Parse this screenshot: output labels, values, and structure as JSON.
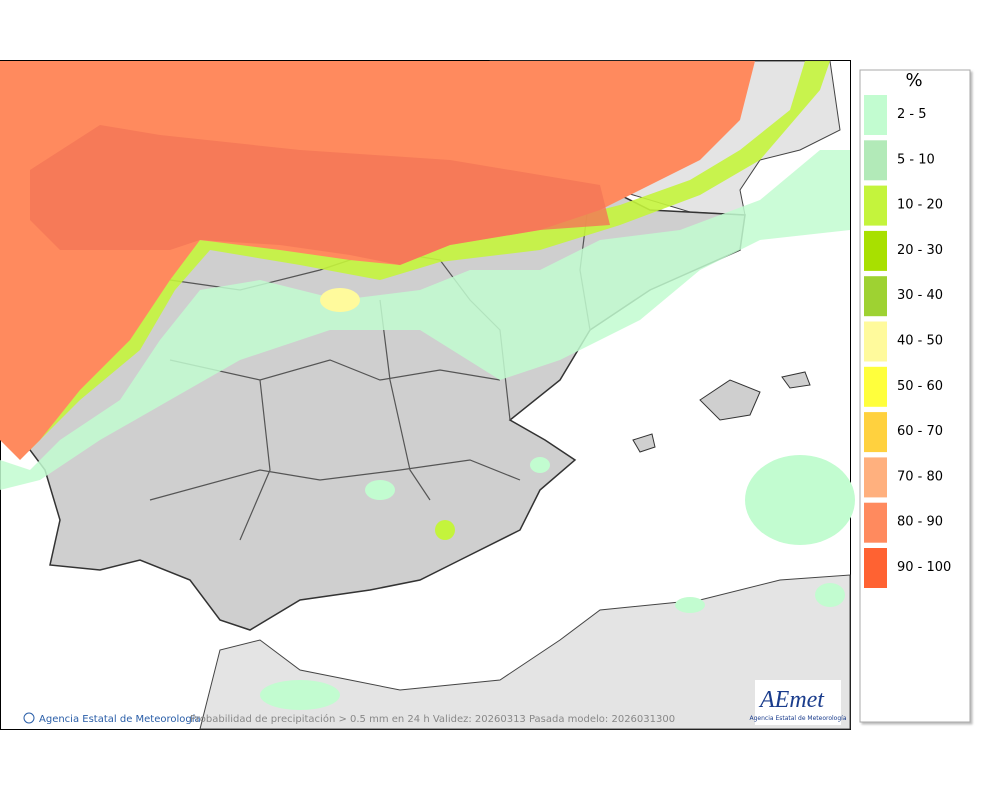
{
  "legend": {
    "title": "%",
    "items": [
      {
        "label": "2 - 5",
        "color": "#c2fcd0"
      },
      {
        "label": "5 - 10",
        "color": "#b2eab8"
      },
      {
        "label": "10 - 20",
        "color": "#c4f43c"
      },
      {
        "label": "20 - 30",
        "color": "#a8e000"
      },
      {
        "label": "30 - 40",
        "color": "#9ed232"
      },
      {
        "label": "40 - 50",
        "color": "#fffa9c"
      },
      {
        "label": "50 - 60",
        "color": "#ffff3c"
      },
      {
        "label": "60 - 70",
        "color": "#ffd13e"
      },
      {
        "label": "70 - 80",
        "color": "#ffb07e"
      },
      {
        "label": "80 - 90",
        "color": "#ff8a5e"
      },
      {
        "label": "90 - 100",
        "color": "#ff6232"
      }
    ]
  },
  "footer": {
    "agency": "Agencia Estatal de Meteorología",
    "caption": "Probabilidad de precipitación > 0.5 mm en 24 h Validez: 20260313 Pasada modelo: 2026031300"
  },
  "logo": {
    "name": "AEmet",
    "subtitle": "Agencia Estatal de Meteorología"
  }
}
